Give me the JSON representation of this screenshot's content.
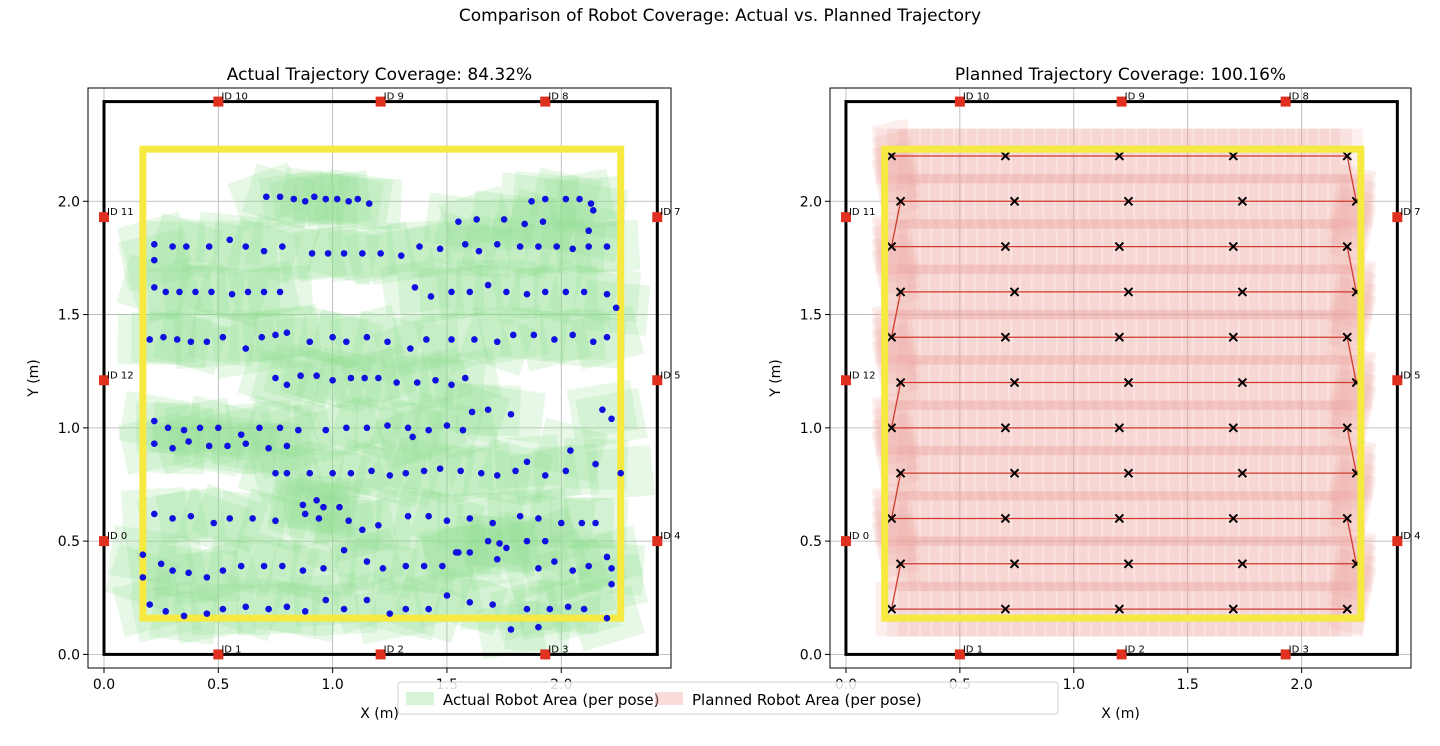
{
  "suptitle": "Comparison of Robot Coverage: Actual vs. Planned Trajectory",
  "legend": {
    "placement": "bottom-center",
    "items": [
      {
        "label": "Actual Robot Area (per pose)",
        "color": "#90e090"
      },
      {
        "label": "Planned Robot Area (per pose)",
        "color": "#f0a8a0"
      }
    ]
  },
  "chart_data": [
    {
      "type": "scatter",
      "title": "Actual Trajectory Coverage: 84.32%",
      "xlabel": "X (m)",
      "ylabel": "Y (m)",
      "xlim": [
        -0.07,
        2.48
      ],
      "ylim": [
        -0.06,
        2.5
      ],
      "xticks": [
        "0.0",
        "0.5",
        "1.0",
        "1.5",
        "2.0"
      ],
      "yticks": [
        "0.0",
        "0.5",
        "1.0",
        "1.5",
        "2.0"
      ],
      "grid": true,
      "boundary": {
        "x": [
          0,
          2.42
        ],
        "y": [
          0,
          2.44
        ],
        "color": "#000000"
      },
      "target_area": {
        "x": [
          0.17,
          2.26
        ],
        "y": [
          0.16,
          2.23
        ],
        "color": "#f5e942"
      },
      "markers": [
        {
          "label": "ID 0",
          "x": 0,
          "y": 0.5
        },
        {
          "label": "ID 1",
          "x": 0.5,
          "y": 0
        },
        {
          "label": "ID 2",
          "x": 1.21,
          "y": 0
        },
        {
          "label": "ID 3",
          "x": 1.93,
          "y": 0
        },
        {
          "label": "ID 4",
          "x": 2.42,
          "y": 0.5
        },
        {
          "label": "ID 5",
          "x": 2.42,
          "y": 1.21
        },
        {
          "label": "ID 7",
          "x": 2.42,
          "y": 1.93
        },
        {
          "label": "ID 8",
          "x": 1.93,
          "y": 2.44
        },
        {
          "label": "ID 9",
          "x": 1.21,
          "y": 2.44
        },
        {
          "label": "ID 10",
          "x": 0.5,
          "y": 2.44
        },
        {
          "label": "ID 11",
          "x": 0,
          "y": 1.93
        },
        {
          "label": "ID 12",
          "x": 0,
          "y": 1.21
        }
      ],
      "marker_color": "#e03020",
      "point_color": "#1010e0",
      "area_color": "#90e090",
      "points": [
        [
          0.71,
          2.02
        ],
        [
          0.77,
          2.02
        ],
        [
          0.83,
          2.01
        ],
        [
          0.88,
          2.0
        ],
        [
          0.92,
          2.02
        ],
        [
          0.97,
          2.01
        ],
        [
          1.02,
          2.01
        ],
        [
          1.07,
          2.0
        ],
        [
          1.11,
          2.01
        ],
        [
          1.16,
          1.99
        ],
        [
          1.87,
          2.0
        ],
        [
          1.93,
          2.01
        ],
        [
          2.02,
          2.01
        ],
        [
          2.08,
          2.01
        ],
        [
          2.13,
          1.99
        ],
        [
          2.14,
          1.96
        ],
        [
          1.55,
          1.91
        ],
        [
          1.63,
          1.92
        ],
        [
          1.75,
          1.92
        ],
        [
          1.84,
          1.9
        ],
        [
          1.92,
          1.91
        ],
        [
          2.12,
          1.87
        ],
        [
          0.22,
          1.81
        ],
        [
          0.3,
          1.8
        ],
        [
          0.36,
          1.8
        ],
        [
          0.46,
          1.8
        ],
        [
          0.55,
          1.83
        ],
        [
          0.62,
          1.8
        ],
        [
          0.7,
          1.78
        ],
        [
          0.78,
          1.8
        ],
        [
          0.91,
          1.77
        ],
        [
          0.98,
          1.77
        ],
        [
          1.05,
          1.77
        ],
        [
          1.13,
          1.77
        ],
        [
          1.21,
          1.77
        ],
        [
          1.3,
          1.76
        ],
        [
          1.38,
          1.8
        ],
        [
          1.47,
          1.79
        ],
        [
          1.58,
          1.81
        ],
        [
          1.64,
          1.78
        ],
        [
          1.72,
          1.81
        ],
        [
          1.82,
          1.8
        ],
        [
          1.9,
          1.8
        ],
        [
          1.98,
          1.8
        ],
        [
          2.05,
          1.79
        ],
        [
          2.12,
          1.8
        ],
        [
          2.2,
          1.8
        ],
        [
          0.22,
          1.74
        ],
        [
          0.22,
          1.62
        ],
        [
          0.27,
          1.6
        ],
        [
          0.33,
          1.6
        ],
        [
          0.4,
          1.6
        ],
        [
          0.47,
          1.6
        ],
        [
          0.56,
          1.59
        ],
        [
          0.63,
          1.6
        ],
        [
          0.7,
          1.6
        ],
        [
          0.77,
          1.6
        ],
        [
          1.36,
          1.62
        ],
        [
          1.43,
          1.58
        ],
        [
          1.52,
          1.6
        ],
        [
          1.6,
          1.6
        ],
        [
          1.68,
          1.63
        ],
        [
          1.76,
          1.6
        ],
        [
          1.85,
          1.59
        ],
        [
          1.93,
          1.6
        ],
        [
          2.02,
          1.6
        ],
        [
          2.1,
          1.6
        ],
        [
          2.2,
          1.59
        ],
        [
          2.24,
          1.53
        ],
        [
          0.2,
          1.39
        ],
        [
          0.26,
          1.4
        ],
        [
          0.32,
          1.39
        ],
        [
          0.38,
          1.38
        ],
        [
          0.45,
          1.38
        ],
        [
          0.52,
          1.4
        ],
        [
          0.62,
          1.35
        ],
        [
          0.69,
          1.4
        ],
        [
          0.75,
          1.41
        ],
        [
          0.8,
          1.42
        ],
        [
          0.9,
          1.38
        ],
        [
          1.0,
          1.4
        ],
        [
          1.06,
          1.38
        ],
        [
          1.15,
          1.4
        ],
        [
          1.24,
          1.38
        ],
        [
          1.34,
          1.35
        ],
        [
          1.41,
          1.39
        ],
        [
          1.52,
          1.39
        ],
        [
          1.62,
          1.39
        ],
        [
          1.72,
          1.38
        ],
        [
          1.79,
          1.41
        ],
        [
          1.88,
          1.41
        ],
        [
          1.97,
          1.39
        ],
        [
          2.05,
          1.41
        ],
        [
          2.14,
          1.38
        ],
        [
          2.2,
          1.4
        ],
        [
          0.75,
          1.22
        ],
        [
          0.8,
          1.19
        ],
        [
          0.86,
          1.23
        ],
        [
          0.93,
          1.23
        ],
        [
          1.0,
          1.21
        ],
        [
          1.08,
          1.22
        ],
        [
          1.14,
          1.22
        ],
        [
          1.2,
          1.22
        ],
        [
          1.28,
          1.2
        ],
        [
          1.37,
          1.2
        ],
        [
          1.45,
          1.21
        ],
        [
          1.52,
          1.19
        ],
        [
          1.58,
          1.22
        ],
        [
          0.22,
          1.03
        ],
        [
          0.28,
          1.0
        ],
        [
          0.35,
          0.99
        ],
        [
          0.42,
          1.0
        ],
        [
          0.5,
          1.0
        ],
        [
          0.6,
          0.97
        ],
        [
          0.68,
          1.0
        ],
        [
          0.77,
          1.0
        ],
        [
          0.85,
          0.99
        ],
        [
          0.97,
          0.99
        ],
        [
          1.06,
          1.0
        ],
        [
          1.15,
          1.0
        ],
        [
          1.24,
          1.01
        ],
        [
          1.33,
          1.0
        ],
        [
          1.42,
          0.99
        ],
        [
          1.5,
          1.01
        ],
        [
          1.57,
          0.99
        ],
        [
          1.61,
          1.07
        ],
        [
          1.68,
          1.08
        ],
        [
          1.78,
          1.06
        ],
        [
          2.18,
          1.08
        ],
        [
          2.22,
          1.04
        ],
        [
          0.22,
          0.93
        ],
        [
          0.3,
          0.91
        ],
        [
          0.37,
          0.94
        ],
        [
          0.46,
          0.92
        ],
        [
          0.54,
          0.92
        ],
        [
          0.62,
          0.93
        ],
        [
          0.72,
          0.91
        ],
        [
          0.8,
          0.92
        ],
        [
          1.35,
          0.96
        ],
        [
          0.75,
          0.8
        ],
        [
          0.8,
          0.8
        ],
        [
          0.9,
          0.8
        ],
        [
          1.0,
          0.8
        ],
        [
          1.08,
          0.8
        ],
        [
          1.17,
          0.81
        ],
        [
          1.25,
          0.79
        ],
        [
          1.32,
          0.8
        ],
        [
          1.4,
          0.81
        ],
        [
          1.47,
          0.82
        ],
        [
          1.56,
          0.81
        ],
        [
          1.65,
          0.8
        ],
        [
          1.72,
          0.79
        ],
        [
          1.8,
          0.81
        ],
        [
          1.85,
          0.85
        ],
        [
          1.93,
          0.79
        ],
        [
          2.02,
          0.81
        ],
        [
          2.04,
          0.9
        ],
        [
          2.15,
          0.84
        ],
        [
          2.26,
          0.8
        ],
        [
          0.93,
          0.68
        ],
        [
          0.96,
          0.65
        ],
        [
          1.03,
          0.65
        ],
        [
          0.87,
          0.66
        ],
        [
          0.22,
          0.62
        ],
        [
          0.3,
          0.6
        ],
        [
          0.38,
          0.61
        ],
        [
          0.48,
          0.58
        ],
        [
          0.55,
          0.6
        ],
        [
          0.65,
          0.6
        ],
        [
          0.75,
          0.59
        ],
        [
          0.88,
          0.62
        ],
        [
          0.94,
          0.6
        ],
        [
          1.07,
          0.59
        ],
        [
          1.13,
          0.55
        ],
        [
          1.2,
          0.57
        ],
        [
          1.33,
          0.61
        ],
        [
          1.42,
          0.61
        ],
        [
          1.5,
          0.59
        ],
        [
          1.6,
          0.6
        ],
        [
          1.7,
          0.58
        ],
        [
          1.82,
          0.61
        ],
        [
          1.9,
          0.6
        ],
        [
          2.0,
          0.58
        ],
        [
          2.09,
          0.58
        ],
        [
          2.15,
          0.58
        ],
        [
          1.68,
          0.5
        ],
        [
          1.73,
          0.49
        ],
        [
          1.76,
          0.47
        ],
        [
          1.85,
          0.5
        ],
        [
          1.93,
          0.5
        ],
        [
          1.54,
          0.45
        ],
        [
          1.6,
          0.45
        ],
        [
          2.2,
          0.43
        ],
        [
          0.17,
          0.44
        ],
        [
          0.25,
          0.4
        ],
        [
          0.3,
          0.37
        ],
        [
          0.37,
          0.36
        ],
        [
          0.45,
          0.34
        ],
        [
          0.52,
          0.37
        ],
        [
          0.6,
          0.39
        ],
        [
          0.7,
          0.39
        ],
        [
          0.78,
          0.39
        ],
        [
          0.87,
          0.37
        ],
        [
          0.96,
          0.38
        ],
        [
          1.05,
          0.46
        ],
        [
          1.15,
          0.41
        ],
        [
          1.22,
          0.38
        ],
        [
          1.32,
          0.39
        ],
        [
          1.4,
          0.39
        ],
        [
          1.48,
          0.39
        ],
        [
          1.55,
          0.45
        ],
        [
          1.72,
          0.42
        ],
        [
          1.9,
          0.38
        ],
        [
          1.97,
          0.41
        ],
        [
          2.05,
          0.37
        ],
        [
          2.12,
          0.39
        ],
        [
          2.22,
          0.38
        ],
        [
          0.17,
          0.34
        ],
        [
          2.22,
          0.31
        ],
        [
          0.2,
          0.22
        ],
        [
          0.27,
          0.19
        ],
        [
          0.35,
          0.17
        ],
        [
          0.45,
          0.18
        ],
        [
          0.52,
          0.2
        ],
        [
          0.62,
          0.21
        ],
        [
          0.72,
          0.2
        ],
        [
          0.8,
          0.21
        ],
        [
          0.88,
          0.19
        ],
        [
          0.97,
          0.24
        ],
        [
          1.05,
          0.2
        ],
        [
          1.15,
          0.24
        ],
        [
          1.25,
          0.18
        ],
        [
          1.32,
          0.2
        ],
        [
          1.42,
          0.2
        ],
        [
          1.5,
          0.26
        ],
        [
          1.6,
          0.23
        ],
        [
          1.7,
          0.22
        ],
        [
          1.85,
          0.2
        ],
        [
          1.95,
          0.2
        ],
        [
          2.03,
          0.21
        ],
        [
          2.1,
          0.2
        ],
        [
          2.2,
          0.16
        ],
        [
          1.78,
          0.11
        ],
        [
          1.9,
          0.12
        ]
      ]
    },
    {
      "type": "line",
      "title": "Planned Trajectory Coverage: 100.16%",
      "xlabel": "X (m)",
      "ylabel": "Y (m)",
      "xlim": [
        -0.07,
        2.48
      ],
      "ylim": [
        -0.06,
        2.5
      ],
      "xticks": [
        "0.0",
        "0.5",
        "1.0",
        "1.5",
        "2.0"
      ],
      "yticks": [
        "0.0",
        "0.5",
        "1.0",
        "1.5",
        "2.0"
      ],
      "grid": true,
      "boundary": {
        "x": [
          0,
          2.42
        ],
        "y": [
          0,
          2.44
        ],
        "color": "#000000"
      },
      "target_area": {
        "x": [
          0.17,
          2.26
        ],
        "y": [
          0.16,
          2.23
        ],
        "color": "#f5e942"
      },
      "markers": [
        {
          "label": "ID 0",
          "x": 0,
          "y": 0.5
        },
        {
          "label": "ID 1",
          "x": 0.5,
          "y": 0
        },
        {
          "label": "ID 2",
          "x": 1.21,
          "y": 0
        },
        {
          "label": "ID 3",
          "x": 1.93,
          "y": 0
        },
        {
          "label": "ID 4",
          "x": 2.42,
          "y": 0.5
        },
        {
          "label": "ID 5",
          "x": 2.42,
          "y": 1.21
        },
        {
          "label": "ID 7",
          "x": 2.42,
          "y": 1.93
        },
        {
          "label": "ID 8",
          "x": 1.93,
          "y": 2.44
        },
        {
          "label": "ID 9",
          "x": 1.21,
          "y": 2.44
        },
        {
          "label": "ID 10",
          "x": 0.5,
          "y": 2.44
        },
        {
          "label": "ID 11",
          "x": 0,
          "y": 1.93
        },
        {
          "label": "ID 12",
          "x": 0,
          "y": 1.21
        }
      ],
      "marker_color": "#e03020",
      "line_color": "#d03a30",
      "waypoint_color": "#000000",
      "area_color": "#f0a8a0",
      "rows_y": [
        2.2,
        2.0,
        1.8,
        1.6,
        1.4,
        1.2,
        1.0,
        0.8,
        0.6,
        0.4,
        0.2
      ],
      "even_row_x": [
        0.2,
        0.7,
        1.2,
        1.7,
        2.2
      ],
      "odd_row_x": [
        0.24,
        0.74,
        1.24,
        1.74,
        2.24
      ]
    }
  ]
}
